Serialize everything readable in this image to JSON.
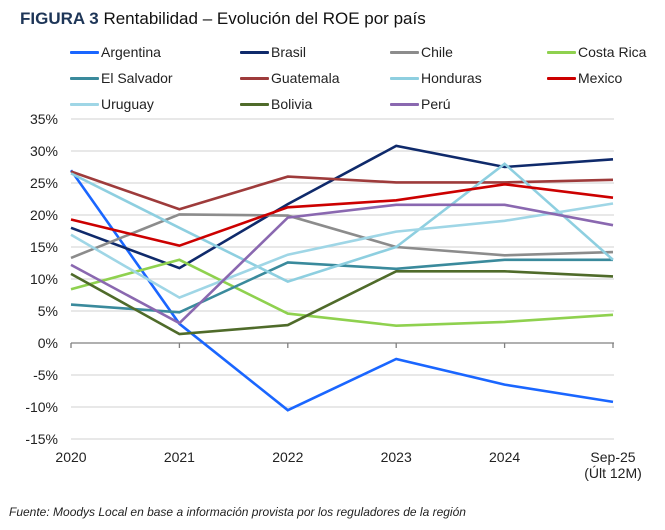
{
  "title": {
    "prefix": "FIGURA 3",
    "text": "Rentabilidad – Evolución del ROE por país"
  },
  "source": "Fuente: Moodys Local en base a información provista por los reguladores de la región",
  "chart_data": {
    "type": "line",
    "title": "FIGURA 3 Rentabilidad – Evolución del ROE por país",
    "xlabel": "",
    "ylabel": "",
    "categories": [
      "2020",
      "2021",
      "2022",
      "2023",
      "2024",
      "Sep-25\n(Últ 12M)"
    ],
    "category_lines": [
      [
        "2020"
      ],
      [
        "2021"
      ],
      [
        "2022"
      ],
      [
        "2023"
      ],
      [
        "2024"
      ],
      [
        "Sep-25",
        "(Últ 12M)"
      ]
    ],
    "ylim": [
      -15,
      35
    ],
    "yticks": [
      35,
      30,
      25,
      20,
      15,
      10,
      5,
      0,
      -5,
      -10,
      -15
    ],
    "ytick_labels": [
      "35%",
      "30%",
      "25%",
      "20%",
      "15%",
      "10%",
      "5%",
      "0%",
      "-5%",
      "-10%",
      "-15%"
    ],
    "grid": true,
    "legend_position": "top",
    "series": [
      {
        "name": "Argentina",
        "color": "#1a66ff",
        "values": [
          27.0,
          3.0,
          -10.5,
          -2.5,
          -6.5,
          -9.2
        ]
      },
      {
        "name": "Brasil",
        "color": "#0f2a6b",
        "values": [
          18.0,
          11.7,
          21.7,
          30.8,
          27.5,
          28.7
        ]
      },
      {
        "name": "Chile",
        "color": "#8c8c8c",
        "values": [
          13.3,
          20.1,
          19.9,
          15.0,
          13.7,
          14.2
        ]
      },
      {
        "name": "Costa Rica",
        "color": "#8fd14f",
        "values": [
          8.4,
          13.0,
          4.6,
          2.7,
          3.3,
          4.4
        ]
      },
      {
        "name": "El Salvador",
        "color": "#3a8a9c",
        "values": [
          6.0,
          4.8,
          12.6,
          11.6,
          13.0,
          13.0
        ]
      },
      {
        "name": "Guatemala",
        "color": "#9e3b3b",
        "values": [
          26.8,
          20.9,
          26.0,
          25.1,
          25.1,
          25.5
        ]
      },
      {
        "name": "Honduras",
        "color": "#8ecfe0",
        "values": [
          26.5,
          18.0,
          9.6,
          15.0,
          28.0,
          13.0
        ]
      },
      {
        "name": "Mexico",
        "color": "#cc0000",
        "values": [
          19.3,
          15.2,
          21.2,
          22.3,
          24.8,
          22.7
        ]
      },
      {
        "name": "Uruguay",
        "color": "#9fd6e6",
        "values": [
          16.9,
          7.1,
          13.8,
          17.4,
          19.1,
          21.8
        ]
      },
      {
        "name": "Bolivia",
        "color": "#4f6b2a",
        "values": [
          10.8,
          1.4,
          2.8,
          11.2,
          11.2,
          10.4
        ]
      },
      {
        "name": "Perú",
        "color": "#8a68b0",
        "values": [
          12.2,
          3.1,
          19.6,
          21.6,
          21.6,
          18.4
        ]
      }
    ]
  }
}
